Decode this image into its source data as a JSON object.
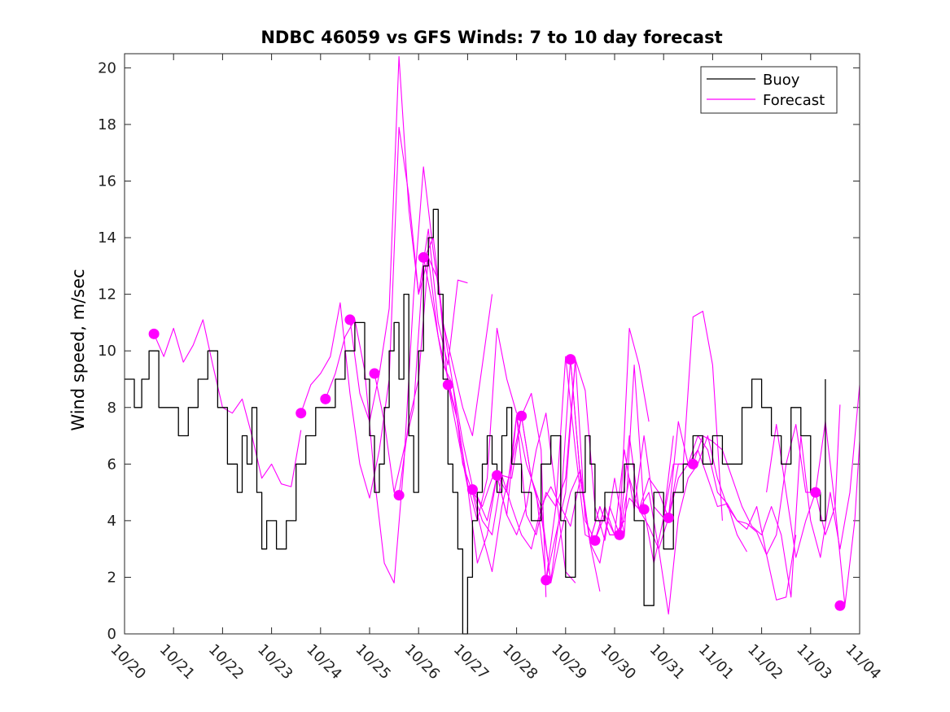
{
  "chart_data": {
    "type": "line",
    "title": "NDBC 46059 vs GFS Winds: 7 to 10 day forecast",
    "xlabel": "",
    "ylabel": "Wind speed, m/sec",
    "xlim": [
      0,
      15
    ],
    "ylim": [
      0,
      20.5
    ],
    "grid": false,
    "x_ticks": [
      0,
      1,
      2,
      3,
      4,
      5,
      6,
      7,
      8,
      9,
      10,
      11,
      12,
      13,
      14,
      15
    ],
    "x_tick_labels": [
      "10/20",
      "10/21",
      "10/22",
      "10/23",
      "10/24",
      "10/25",
      "10/26",
      "10/27",
      "10/28",
      "10/29",
      "10/30",
      "10/31",
      "11/01",
      "11/02",
      "11/03",
      "11/04"
    ],
    "y_ticks": [
      0,
      2,
      4,
      6,
      8,
      10,
      12,
      14,
      16,
      18,
      20
    ],
    "y_tick_labels": [
      "0",
      "2",
      "4",
      "6",
      "8",
      "10",
      "12",
      "14",
      "16",
      "18",
      "20"
    ],
    "legend": {
      "position": "top-right",
      "entries": [
        "Buoy",
        "Forecast"
      ]
    },
    "colors": {
      "buoy": "#000000",
      "forecast": "#ff00ff"
    },
    "series": [
      {
        "name": "Buoy",
        "kind": "line",
        "x": [
          0,
          0.2,
          0.35,
          0.5,
          0.7,
          0.9,
          1.1,
          1.3,
          1.5,
          1.7,
          1.9,
          2.1,
          2.3,
          2.4,
          2.5,
          2.6,
          2.7,
          2.8,
          2.9,
          3.0,
          3.1,
          3.2,
          3.3,
          3.5,
          3.7,
          3.9,
          4.1,
          4.3,
          4.5,
          4.7,
          4.9,
          5.0,
          5.1,
          5.2,
          5.3,
          5.4,
          5.5,
          5.6,
          5.7,
          5.8,
          5.9,
          6.0,
          6.1,
          6.2,
          6.3,
          6.4,
          6.5,
          6.6,
          6.7,
          6.8,
          6.9,
          7.0,
          7.1,
          7.2,
          7.3,
          7.4,
          7.5,
          7.6,
          7.7,
          7.8,
          7.9,
          8.1,
          8.3,
          8.5,
          8.7,
          8.9,
          9.0,
          9.2,
          9.4,
          9.5,
          9.6,
          9.8,
          10.0,
          10.2,
          10.4,
          10.6,
          10.8,
          11.0,
          11.2,
          11.4,
          11.6,
          11.8,
          12.0,
          12.2,
          12.4,
          12.6,
          12.8,
          13.0,
          13.2,
          13.4,
          13.6,
          13.8,
          14.0,
          14.2,
          14.3
        ],
        "values": [
          9,
          8,
          9,
          10,
          8,
          8,
          7,
          8,
          9,
          10,
          8,
          6,
          5,
          7,
          6,
          8,
          5,
          3,
          4,
          4,
          3,
          3,
          4,
          6,
          7,
          8,
          8,
          9,
          10,
          11,
          9,
          7,
          5,
          6,
          8,
          10,
          11,
          9,
          12,
          7,
          5,
          10,
          13,
          14,
          15,
          12,
          9,
          6,
          5,
          3,
          0,
          2,
          4,
          5,
          6,
          7,
          6,
          5,
          7,
          8,
          6,
          5,
          4,
          6,
          7,
          4,
          2,
          5,
          7,
          6,
          4,
          5,
          5,
          6,
          4,
          1,
          5,
          3,
          5,
          6,
          7,
          6,
          7,
          6,
          6,
          8,
          9,
          8,
          7,
          6,
          8,
          7,
          5,
          4,
          9
        ]
      },
      {
        "name": "Forecast",
        "kind": "line",
        "x": [
          0.6,
          0.8,
          1.0,
          1.2,
          1.4,
          1.6,
          1.8,
          2.0,
          2.2,
          2.4,
          2.6,
          2.8,
          3.0,
          3.2,
          3.4,
          3.6
        ],
        "values": [
          10.6,
          9.8,
          10.8,
          9.6,
          10.2,
          11.1,
          9.5,
          8.0,
          7.8,
          8.3,
          7.0,
          5.5,
          6.0,
          5.3,
          5.2,
          7.2
        ]
      },
      {
        "name": "Forecast",
        "kind": "line",
        "x": [
          3.6,
          3.8,
          4.0,
          4.2,
          4.4,
          4.6,
          4.8,
          5.0,
          5.2,
          5.4,
          5.6,
          5.8,
          6.0,
          6.2,
          6.4,
          6.6,
          6.8,
          7.0
        ],
        "values": [
          7.8,
          8.8,
          9.2,
          9.8,
          11.7,
          8.5,
          6.0,
          4.8,
          6.5,
          9.0,
          17.9,
          15.5,
          12.0,
          14.3,
          11.0,
          9.5,
          12.5,
          12.4
        ]
      },
      {
        "name": "Forecast",
        "kind": "line",
        "x": [
          4.1,
          4.3,
          4.5,
          4.7,
          4.9,
          5.1,
          5.3,
          5.5,
          5.7,
          5.9,
          6.1,
          6.3,
          6.5,
          6.7,
          6.9,
          7.1,
          7.3,
          7.5
        ],
        "values": [
          8.3,
          9.2,
          10.5,
          11.1,
          9.3,
          5.5,
          2.5,
          1.8,
          6.0,
          12.0,
          16.5,
          13.5,
          11.0,
          9.5,
          8.0,
          7.0,
          9.5,
          12.0
        ]
      },
      {
        "name": "Forecast",
        "kind": "line",
        "x": [
          4.6,
          4.8,
          5.0,
          5.2,
          5.4,
          5.6,
          5.8,
          6.0,
          6.2,
          6.4,
          6.6,
          6.8,
          7.0,
          7.2,
          7.4,
          7.6,
          7.8,
          8.0
        ],
        "values": [
          11.1,
          8.5,
          7.5,
          9.2,
          11.5,
          20.4,
          15.0,
          12.0,
          13.3,
          10.5,
          9.0,
          7.5,
          5.3,
          4.0,
          5.5,
          10.8,
          9.0,
          7.8
        ]
      },
      {
        "name": "Forecast",
        "kind": "line",
        "x": [
          5.1,
          5.3,
          5.5,
          5.7,
          5.9,
          6.1,
          6.3,
          6.5,
          6.7,
          6.9,
          7.1,
          7.3,
          7.5,
          7.7,
          7.9,
          8.1,
          8.3,
          8.5,
          8.6
        ],
        "values": [
          9.2,
          7.5,
          5.0,
          6.5,
          8.0,
          13.2,
          14.0,
          11.0,
          8.8,
          6.0,
          5.0,
          3.5,
          2.2,
          4.5,
          6.0,
          7.7,
          8.5,
          6.5,
          1.3
        ]
      },
      {
        "name": "Forecast",
        "kind": "line",
        "x": [
          5.6,
          5.8,
          6.0,
          6.2,
          6.4,
          6.6,
          6.8,
          7.0,
          7.2,
          7.4,
          7.6,
          7.8,
          8.0,
          8.2,
          8.4,
          8.6,
          8.8,
          9.0,
          9.2
        ],
        "values": [
          4.9,
          7.5,
          9.0,
          13.3,
          12.5,
          8.8,
          7.5,
          5.2,
          2.5,
          3.5,
          5.6,
          4.2,
          3.5,
          4.5,
          6.5,
          7.8,
          5.0,
          2.2,
          1.8
        ]
      },
      {
        "name": "Forecast",
        "kind": "line",
        "x": [
          6.1,
          6.3,
          6.5,
          6.7,
          6.9,
          7.1,
          7.3,
          7.5,
          7.7,
          7.9,
          8.1,
          8.3,
          8.5,
          8.7,
          8.9,
          9.1,
          9.3,
          9.5,
          9.7
        ],
        "values": [
          13.3,
          11.5,
          9.5,
          8.8,
          6.8,
          5.2,
          4.5,
          5.5,
          5.6,
          4.5,
          3.5,
          3.0,
          4.5,
          5.2,
          4.5,
          3.8,
          5.5,
          3.2,
          1.5
        ]
      },
      {
        "name": "Forecast",
        "kind": "line",
        "x": [
          6.6,
          6.8,
          7.0,
          7.2,
          7.4,
          7.6,
          7.8,
          8.0,
          8.2,
          8.4,
          8.6,
          8.8,
          9.0,
          9.2,
          9.4,
          9.6,
          9.8,
          10.0,
          10.2
        ],
        "values": [
          8.8,
          7.0,
          5.2,
          4.8,
          4.0,
          5.6,
          5.0,
          7.7,
          4.2,
          3.5,
          5.0,
          4.5,
          9.8,
          6.5,
          3.5,
          3.3,
          4.2,
          3.5,
          4.0
        ]
      },
      {
        "name": "Forecast",
        "kind": "line",
        "x": [
          7.1,
          7.3,
          7.5,
          7.7,
          7.9,
          8.1,
          8.3,
          8.5,
          8.7,
          8.9,
          9.1,
          9.3,
          9.5,
          9.7,
          9.9,
          10.1,
          10.3,
          10.5,
          10.7
        ],
        "values": [
          5.1,
          4.0,
          3.5,
          5.6,
          5.5,
          7.7,
          5.5,
          4.5,
          1.8,
          3.5,
          5.0,
          5.8,
          3.2,
          2.5,
          4.5,
          3.5,
          10.8,
          9.5,
          7.5
        ]
      },
      {
        "name": "Forecast",
        "kind": "line",
        "x": [
          7.6,
          7.8,
          8.0,
          8.2,
          8.4,
          8.6,
          8.8,
          9.0,
          9.2,
          9.4,
          9.6,
          9.8,
          10.0,
          10.2,
          10.4,
          10.6,
          10.8,
          11.0,
          11.2
        ],
        "values": [
          5.6,
          4.2,
          7.7,
          6.0,
          5.0,
          1.9,
          3.5,
          5.0,
          9.7,
          8.6,
          4.5,
          3.3,
          5.5,
          3.5,
          9.5,
          4.4,
          2.5,
          4.1,
          7.0
        ]
      },
      {
        "name": "Forecast",
        "kind": "line",
        "x": [
          8.1,
          8.3,
          8.5,
          8.7,
          8.9,
          9.1,
          9.3,
          9.5,
          9.7,
          9.9,
          10.1,
          10.3,
          10.5,
          10.7,
          10.9,
          11.1,
          11.3,
          11.5,
          11.7
        ],
        "values": [
          7.7,
          5.5,
          4.2,
          1.9,
          4.5,
          9.7,
          5.5,
          3.3,
          4.5,
          3.5,
          3.5,
          4.8,
          4.4,
          5.5,
          5.0,
          4.1,
          7.5,
          6.0,
          6.5
        ]
      },
      {
        "name": "Forecast",
        "kind": "line",
        "x": [
          8.6,
          8.8,
          9.0,
          9.2,
          9.4,
          9.6,
          9.8,
          10.0,
          10.2,
          10.4,
          10.6,
          10.8,
          11.0,
          11.2,
          11.4,
          11.6,
          11.8,
          12.0,
          12.2
        ],
        "values": [
          1.9,
          4.5,
          5.5,
          9.7,
          4.0,
          3.3,
          4.5,
          3.5,
          6.5,
          4.4,
          7.0,
          4.5,
          4.1,
          6.0,
          6.0,
          11.2,
          11.4,
          9.5,
          4.0
        ]
      },
      {
        "name": "Forecast",
        "kind": "line",
        "x": [
          9.1,
          9.3,
          9.5,
          9.7,
          9.9,
          10.1,
          10.3,
          10.5,
          10.7,
          10.9,
          11.1,
          11.3,
          11.5,
          11.7,
          11.9,
          12.1,
          12.3,
          12.5,
          12.7
        ],
        "values": [
          9.7,
          5.5,
          3.3,
          4.5,
          3.5,
          3.5,
          7.0,
          4.4,
          5.0,
          3.0,
          4.1,
          6.0,
          6.0,
          7.0,
          6.5,
          5.0,
          4.6,
          3.5,
          2.9
        ]
      },
      {
        "name": "Forecast",
        "kind": "line",
        "x": [
          10.1,
          10.3,
          10.5,
          10.7,
          10.9,
          11.1,
          11.3,
          11.5,
          11.7,
          11.9,
          12.1,
          12.3,
          12.5,
          12.7,
          12.9,
          13.1,
          13.3,
          13.5,
          13.7
        ],
        "values": [
          3.5,
          5.5,
          4.4,
          3.8,
          3.0,
          0.7,
          4.1,
          5.5,
          6.0,
          7.0,
          5.5,
          4.5,
          4.0,
          3.7,
          4.5,
          2.8,
          1.2,
          1.3,
          3.5
        ]
      },
      {
        "name": "Forecast",
        "kind": "line",
        "x": [
          11.1,
          11.3,
          11.5,
          11.7,
          11.9,
          12.1,
          12.3,
          12.5,
          12.7,
          12.9,
          13.1,
          13.3,
          13.5,
          13.7,
          13.9,
          14.1,
          14.3,
          14.5,
          14.6
        ],
        "values": [
          4.1,
          5.5,
          6.0,
          6.5,
          5.5,
          4.5,
          4.6,
          4.0,
          3.9,
          3.6,
          2.8,
          3.5,
          6.0,
          7.4,
          5.0,
          5.0,
          3.5,
          4.5,
          8.1
        ]
      },
      {
        "name": "Forecast",
        "kind": "line",
        "x": [
          11.6,
          11.8,
          12.0,
          12.2,
          12.4,
          12.6,
          12.8,
          13.0,
          13.2,
          13.4,
          13.6,
          13.8,
          14.0,
          14.2,
          14.4,
          14.6,
          14.8,
          15.0
        ],
        "values": [
          6.0,
          7.0,
          6.8,
          6.5,
          5.5,
          4.5,
          3.8,
          3.5,
          4.5,
          3.5,
          1.3,
          7.0,
          4.0,
          2.7,
          5.0,
          3.0,
          5.0,
          8.8
        ]
      },
      {
        "name": "Forecast",
        "kind": "line",
        "x": [
          13.1,
          13.3,
          13.5,
          13.7,
          13.9,
          14.1,
          14.3,
          14.5,
          14.7,
          14.9,
          15.0
        ],
        "values": [
          5.0,
          7.4,
          5.0,
          2.7,
          4.0,
          5.0,
          7.5,
          4.5,
          1.0,
          4.0,
          6.8
        ]
      },
      {
        "name": "Forecast",
        "kind": "markers",
        "x": [
          0.6,
          3.6,
          4.1,
          4.6,
          5.1,
          5.6,
          6.1,
          6.6,
          7.1,
          7.6,
          8.1,
          8.6,
          9.1,
          9.6,
          10.1,
          10.6,
          11.1,
          11.6,
          14.1,
          14.6
        ],
        "values": [
          10.6,
          7.8,
          8.3,
          11.1,
          9.2,
          4.9,
          13.3,
          8.8,
          5.1,
          5.6,
          7.7,
          1.9,
          9.7,
          3.3,
          3.5,
          4.4,
          4.1,
          6.0,
          5.0,
          1.0
        ]
      }
    ]
  }
}
